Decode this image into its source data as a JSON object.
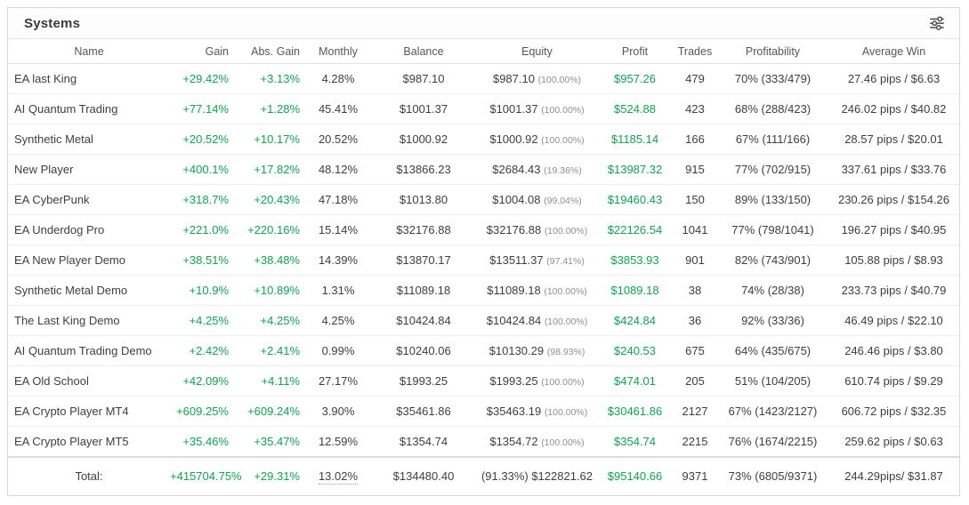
{
  "panel": {
    "title": "Systems"
  },
  "icons": {
    "filter": "tune-sliders-icon"
  },
  "colors": {
    "positive_green": "#0CA750",
    "text_dark": "#3e3e3e",
    "text_muted": "#8f8f8f",
    "border": "#e4e4e4"
  },
  "table": {
    "columns": [
      {
        "key": "name",
        "label": "Name",
        "align": "left"
      },
      {
        "key": "gain",
        "label": "Gain",
        "align": "right"
      },
      {
        "key": "abs_gain",
        "label": "Abs. Gain",
        "align": "right"
      },
      {
        "key": "monthly",
        "label": "Monthly",
        "align": "center"
      },
      {
        "key": "balance",
        "label": "Balance",
        "align": "center"
      },
      {
        "key": "equity",
        "label": "Equity",
        "align": "center"
      },
      {
        "key": "profit",
        "label": "Profit",
        "align": "center"
      },
      {
        "key": "trades",
        "label": "Trades",
        "align": "center"
      },
      {
        "key": "profitability",
        "label": "Profitability",
        "align": "center"
      },
      {
        "key": "avg_win",
        "label": "Average Win",
        "align": "center"
      }
    ],
    "rows": [
      {
        "name": "EA last King",
        "gain": "+29.42%",
        "abs_gain": "+3.13%",
        "monthly": "4.28%",
        "balance": "$987.10",
        "equity": "$987.10",
        "equity_pct": "(100.00%)",
        "profit": "$957.26",
        "trades": "479",
        "profitability": "70% (333/479)",
        "avg_win": "27.46 pips / $6.63"
      },
      {
        "name": "AI Quantum Trading",
        "gain": "+77.14%",
        "abs_gain": "+1.28%",
        "monthly": "45.41%",
        "balance": "$1001.37",
        "equity": "$1001.37",
        "equity_pct": "(100.00%)",
        "profit": "$524.88",
        "trades": "423",
        "profitability": "68% (288/423)",
        "avg_win": "246.02 pips / $40.82"
      },
      {
        "name": "Synthetic Metal",
        "gain": "+20.52%",
        "abs_gain": "+10.17%",
        "monthly": "20.52%",
        "balance": "$1000.92",
        "equity": "$1000.92",
        "equity_pct": "(100.00%)",
        "profit": "$1185.14",
        "trades": "166",
        "profitability": "67% (111/166)",
        "avg_win": "28.57 pips / $20.01"
      },
      {
        "name": "New Player",
        "gain": "+400.1%",
        "abs_gain": "+17.82%",
        "monthly": "48.12%",
        "balance": "$13866.23",
        "equity": "$2684.43",
        "equity_pct": "(19.36%)",
        "profit": "$13987.32",
        "trades": "915",
        "profitability": "77% (702/915)",
        "avg_win": "337.61 pips / $33.76"
      },
      {
        "name": "EA CyberPunk",
        "gain": "+318.7%",
        "abs_gain": "+20.43%",
        "monthly": "47.18%",
        "balance": "$1013.80",
        "equity": "$1004.08",
        "equity_pct": "(99.04%)",
        "profit": "$19460.43",
        "trades": "150",
        "profitability": "89% (133/150)",
        "avg_win": "230.26 pips / $154.26"
      },
      {
        "name": "EA Underdog Pro",
        "gain": "+221.0%",
        "abs_gain": "+220.16%",
        "monthly": "15.14%",
        "balance": "$32176.88",
        "equity": "$32176.88",
        "equity_pct": "(100.00%)",
        "profit": "$22126.54",
        "trades": "1041",
        "profitability": "77% (798/1041)",
        "avg_win": "196.27 pips / $40.95"
      },
      {
        "name": "EA New Player Demo",
        "gain": "+38.51%",
        "abs_gain": "+38.48%",
        "monthly": "14.39%",
        "balance": "$13870.17",
        "equity": "$13511.37",
        "equity_pct": "(97.41%)",
        "profit": "$3853.93",
        "trades": "901",
        "profitability": "82% (743/901)",
        "avg_win": "105.88 pips / $8.93"
      },
      {
        "name": "Synthetic Metal Demo",
        "gain": "+10.9%",
        "abs_gain": "+10.89%",
        "monthly": "1.31%",
        "balance": "$11089.18",
        "equity": "$11089.18",
        "equity_pct": "(100.00%)",
        "profit": "$1089.18",
        "trades": "38",
        "profitability": "74% (28/38)",
        "avg_win": "233.73 pips / $40.79"
      },
      {
        "name": "The Last King Demo",
        "gain": "+4.25%",
        "abs_gain": "+4.25%",
        "monthly": "4.25%",
        "balance": "$10424.84",
        "equity": "$10424.84",
        "equity_pct": "(100.00%)",
        "profit": "$424.84",
        "trades": "36",
        "profitability": "92% (33/36)",
        "avg_win": "46.49 pips / $22.10"
      },
      {
        "name": "AI Quantum Trading Demo",
        "gain": "+2.42%",
        "abs_gain": "+2.41%",
        "monthly": "0.99%",
        "balance": "$10240.06",
        "equity": "$10130.29",
        "equity_pct": "(98.93%)",
        "profit": "$240.53",
        "trades": "675",
        "profitability": "64% (435/675)",
        "avg_win": "246.46 pips / $3.80"
      },
      {
        "name": "EA Old School",
        "gain": "+42.09%",
        "abs_gain": "+4.11%",
        "monthly": "27.17%",
        "balance": "$1993.25",
        "equity": "$1993.25",
        "equity_pct": "(100.00%)",
        "profit": "$474.01",
        "trades": "205",
        "profitability": "51% (104/205)",
        "avg_win": "610.74 pips / $9.29"
      },
      {
        "name": "EA Crypto Player MT4",
        "gain": "+609.25%",
        "abs_gain": "+609.24%",
        "monthly": "3.90%",
        "balance": "$35461.86",
        "equity": "$35463.19",
        "equity_pct": "(100.00%)",
        "profit": "$30461.86",
        "trades": "2127",
        "profitability": "67% (1423/2127)",
        "avg_win": "606.72 pips / $32.35"
      },
      {
        "name": "EA Crypto Player MT5",
        "gain": "+35.46%",
        "abs_gain": "+35.47%",
        "monthly": "12.59%",
        "balance": "$1354.74",
        "equity": "$1354.72",
        "equity_pct": "(100.00%)",
        "profit": "$354.74",
        "trades": "2215",
        "profitability": "76% (1674/2215)",
        "avg_win": "259.62 pips / $0.63"
      }
    ],
    "total": {
      "name": "Total:",
      "gain": "+415704.75%",
      "abs_gain": "+29.31%",
      "monthly": "13.02%",
      "balance": "$134480.40",
      "equity": "(91.33%) $122821.62",
      "profit": "$95140.66",
      "trades": "9371",
      "profitability": "73% (6805/9371)",
      "avg_win": "244.29pips/ $31.87"
    }
  }
}
